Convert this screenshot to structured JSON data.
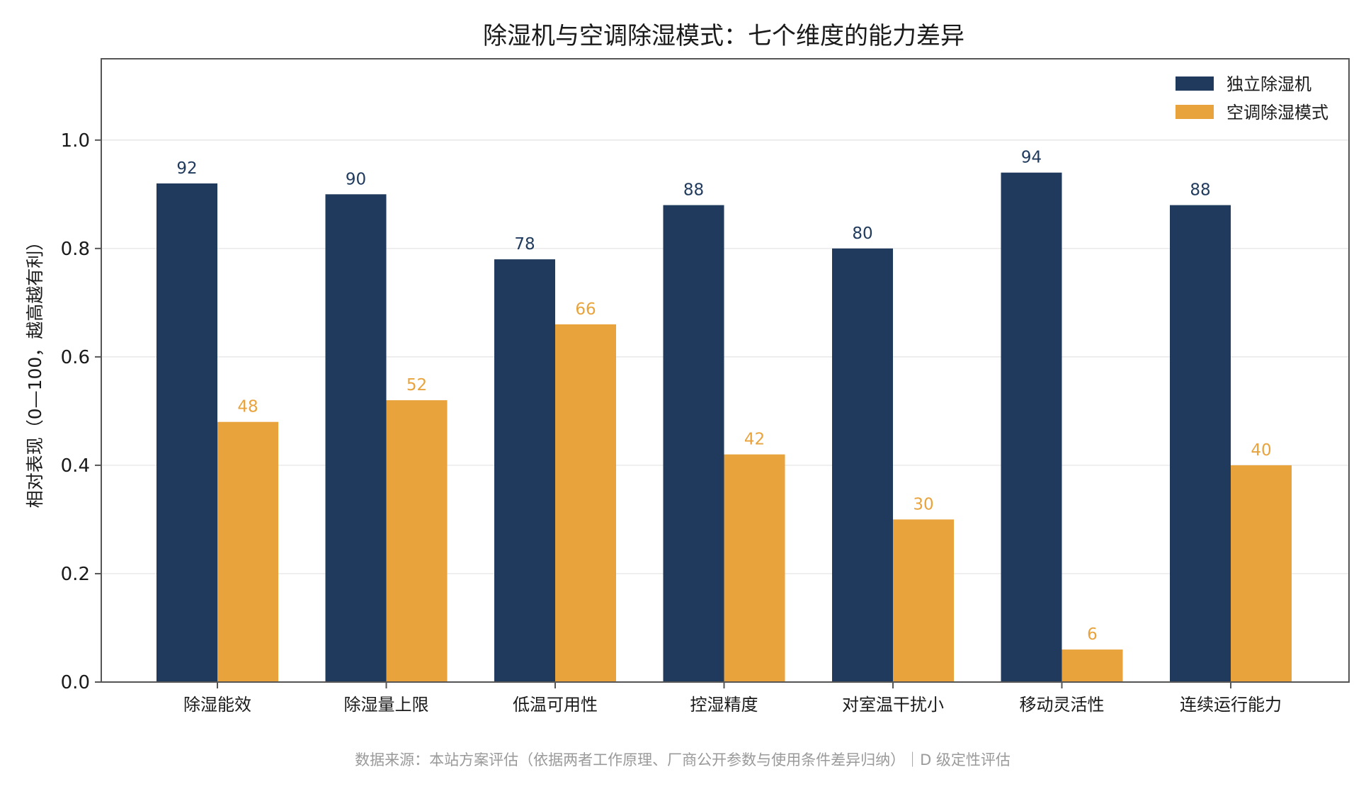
{
  "colors": {
    "series_a": "#1f3a5c",
    "series_b": "#e8a33c"
  },
  "chart_data": {
    "type": "bar",
    "title": "除湿机与空调除湿模式：七个维度的能力差异",
    "xlabel": "",
    "ylabel": "相对表现（0—100，越高越有利）",
    "ylim": [
      0,
      1.15
    ],
    "yticks": [
      "0.0",
      "0.2",
      "0.4",
      "0.6",
      "0.8",
      "1.0"
    ],
    "categories": [
      "除湿能效",
      "除湿量上限",
      "低温可用性",
      "控湿精度",
      "对室温干扰小",
      "移动灵活性",
      "连续运行能力"
    ],
    "series": [
      {
        "name": "独立除湿机",
        "values": [
          0.92,
          0.9,
          0.78,
          0.88,
          0.8,
          0.94,
          0.88
        ],
        "labels": [
          "92",
          "90",
          "78",
          "88",
          "80",
          "94",
          "88"
        ]
      },
      {
        "name": "空调除湿模式",
        "values": [
          0.48,
          0.52,
          0.66,
          0.42,
          0.3,
          0.06,
          0.4
        ],
        "labels": [
          "48",
          "52",
          "66",
          "42",
          "30",
          "6",
          "40"
        ]
      }
    ],
    "grid": true,
    "legend_position": "top-right"
  },
  "source_note": "数据来源：本站方案评估（依据两者工作原理、厂商公开参数与使用条件差异归纳）｜D 级定性评估"
}
